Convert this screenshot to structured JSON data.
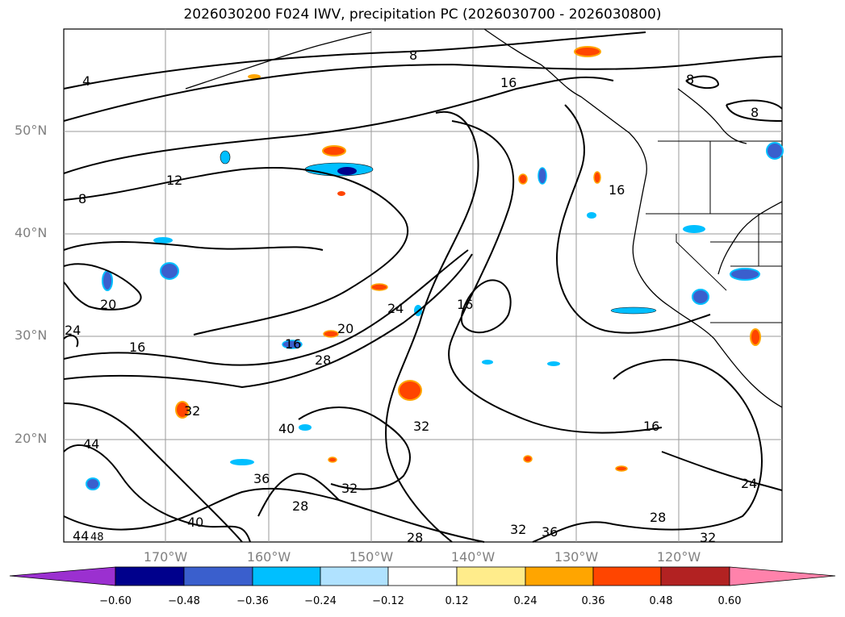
{
  "title": "2026030200 F024 IWV, precipitation PC (2026030700 - 2026030800)",
  "axes": {
    "lat_labels": [
      "50°N",
      "40°N",
      "30°N",
      "20°N"
    ],
    "lon_labels": [
      "170°W",
      "160°W",
      "150°W",
      "140°W",
      "130°W",
      "120°W"
    ]
  },
  "contour_labels": [
    "4",
    "8",
    "8",
    "8",
    "8",
    "12",
    "16",
    "16",
    "16",
    "16",
    "16",
    "16",
    "20",
    "20",
    "24",
    "24",
    "24",
    "28",
    "28",
    "28",
    "32",
    "32",
    "32",
    "32",
    "32",
    "36",
    "36",
    "40",
    "40",
    "44",
    "44",
    "48",
    "28"
  ],
  "colorbar": {
    "ticks": [
      "−0.60",
      "−0.48",
      "−0.36",
      "−0.24",
      "−0.12",
      "0.12",
      "0.24",
      "0.36",
      "0.48",
      "0.60"
    ],
    "colors": [
      "#9b30d0",
      "#00008c",
      "#3a5fcd",
      "#00bfff",
      "#b0e2ff",
      "#ffffff",
      "#ffec8b",
      "#ffa500",
      "#ff4500",
      "#b22222",
      "#ff82ab"
    ]
  }
}
